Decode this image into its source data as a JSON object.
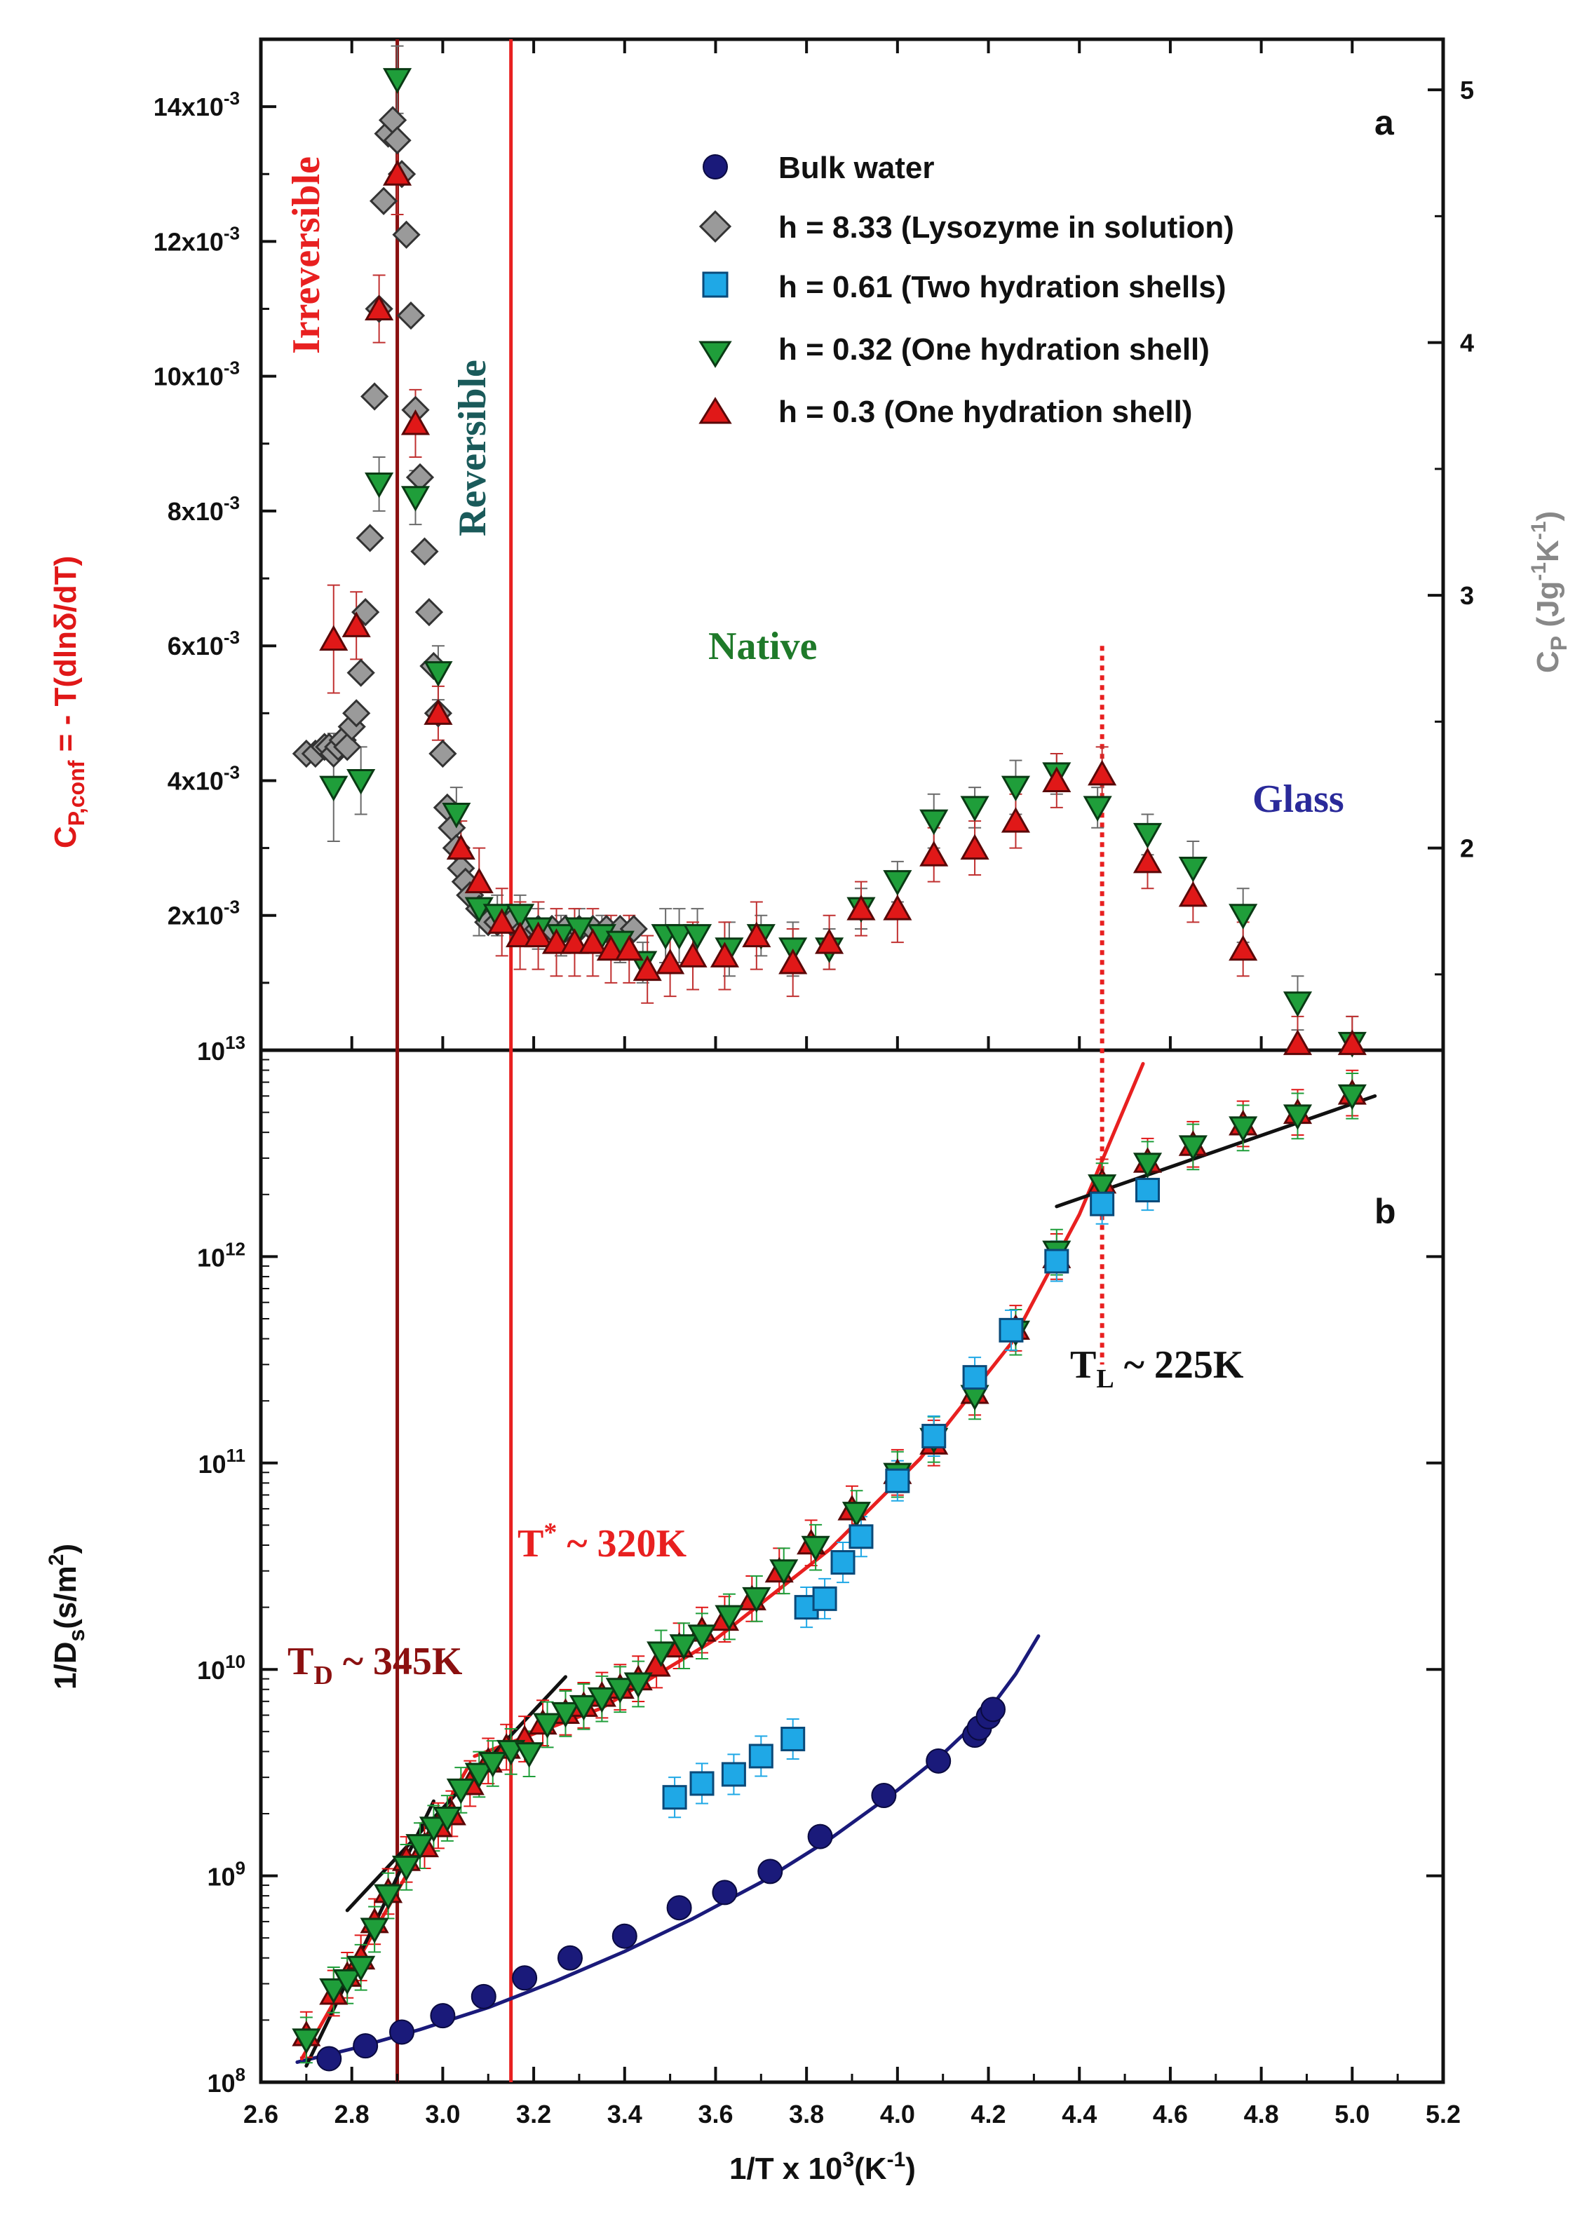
{
  "figure": {
    "x_axis_label": "1/T x 10",
    "x_axis_label_sup": "3",
    "x_axis_label_tail": "(K",
    "x_axis_label_sup2": "-1",
    "x_axis_label_end": ")"
  },
  "colors": {
    "bulk": "#1a1a7a",
    "lysozyme": "#9a9a9a",
    "twoshell": "#1fa8e6",
    "oneshell_032": "#1f9e3a",
    "oneshell_03": "#e01818",
    "dark_red": "#8b1010",
    "red_line": "#e82020",
    "black": "#111111"
  },
  "chart_data": [
    {
      "panel": "a",
      "type": "scatter",
      "panel_label": "a",
      "ylabel_left": {
        "main": "C",
        "sub": "P,conf",
        "rest": " = - T(dlnδ/dT)"
      },
      "ylabel_right": {
        "main": "C",
        "sub": "P",
        "rest": " (Jg",
        "sup1": "-1",
        "mid": "K",
        "sup2": "-1",
        "end": ")"
      },
      "xlim": [
        2.6,
        5.2
      ],
      "ylim_left": [
        0.0,
        0.015
      ],
      "ylim_right": [
        1.2,
        5.2
      ],
      "left_ticks": [
        {
          "value": 0.002,
          "base": "2x10",
          "exp": "-3"
        },
        {
          "value": 0.004,
          "base": "4x10",
          "exp": "-3"
        },
        {
          "value": 0.006,
          "base": "6x10",
          "exp": "-3"
        },
        {
          "value": 0.008,
          "base": "8x10",
          "exp": "-3"
        },
        {
          "value": 0.01,
          "base": "10x10",
          "exp": "-3"
        },
        {
          "value": 0.012,
          "base": "12x10",
          "exp": "-3"
        },
        {
          "value": 0.014,
          "base": "14x10",
          "exp": "-3"
        }
      ],
      "right_ticks": [
        2,
        3,
        4,
        5
      ],
      "legend": [
        {
          "key": "bulk",
          "label": "Bulk water"
        },
        {
          "key": "lysozyme",
          "label": "h = 8.33 (Lysozyme in solution)"
        },
        {
          "key": "twoshell",
          "label": "h = 0.61 (Two hydration shells)"
        },
        {
          "key": "oneshell_032",
          "label": "h = 0.32 (One hydration shell)"
        },
        {
          "key": "oneshell_03",
          "label": "h = 0.3 (One hydration shell)"
        }
      ],
      "annotations": {
        "irreversible": "Irreversible",
        "reversible": "Reversible",
        "native": "Native",
        "glass": "Glass"
      },
      "series": [
        {
          "name": "h = 8.33 (Lysozyme in solution)",
          "key": "lysozyme",
          "x": [
            2.7,
            2.72,
            2.74,
            2.75,
            2.76,
            2.77,
            2.78,
            2.79,
            2.8,
            2.81,
            2.82,
            2.83,
            2.84,
            2.85,
            2.86,
            2.87,
            2.88,
            2.89,
            2.9,
            2.91,
            2.92,
            2.93,
            2.94,
            2.95,
            2.96,
            2.97,
            2.98,
            2.99,
            3.0,
            3.01,
            3.02,
            3.03,
            3.04,
            3.05,
            3.06,
            3.08,
            3.1,
            3.12,
            3.15,
            3.18,
            3.21,
            3.24,
            3.27,
            3.3,
            3.33,
            3.36,
            3.39,
            3.42
          ],
          "y": [
            0.0044,
            0.0044,
            0.0045,
            0.0045,
            0.0044,
            0.0045,
            0.0046,
            0.0045,
            0.0048,
            0.005,
            0.0056,
            0.0065,
            0.0076,
            0.0097,
            0.011,
            0.0126,
            0.0136,
            0.0138,
            0.0135,
            0.013,
            0.0121,
            0.0109,
            0.0095,
            0.0085,
            0.0074,
            0.0065,
            0.0057,
            0.005,
            0.0044,
            0.0036,
            0.0033,
            0.003,
            0.0027,
            0.0025,
            0.0023,
            0.0021,
            0.0019,
            0.0019,
            0.0019,
            0.0018,
            0.0018,
            0.0018,
            0.0018,
            0.0018,
            0.0018,
            0.0018,
            0.0018,
            0.0018
          ]
        },
        {
          "name": "h = 0.32 (One hydration shell)",
          "key": "oneshell_032",
          "x": [
            2.76,
            2.82,
            2.86,
            2.9,
            2.94,
            2.99,
            3.03,
            3.08,
            3.12,
            3.17,
            3.21,
            3.26,
            3.3,
            3.35,
            3.39,
            3.44,
            3.49,
            3.52,
            3.56,
            3.63,
            3.7,
            3.77,
            3.85,
            3.92,
            4.0,
            4.08,
            4.17,
            4.26,
            4.35,
            4.44,
            4.55,
            4.65,
            4.76,
            4.88,
            5.0
          ],
          "y": [
            0.0039,
            0.004,
            0.0084,
            0.0144,
            0.0082,
            0.0056,
            0.0035,
            0.0021,
            0.002,
            0.002,
            0.0018,
            0.0017,
            0.0018,
            0.0017,
            0.0016,
            0.0013,
            0.0017,
            0.0017,
            0.0017,
            0.0015,
            0.0017,
            0.0015,
            0.0015,
            0.0021,
            0.0025,
            0.0034,
            0.0036,
            0.0039,
            0.0041,
            0.0036,
            0.0032,
            0.0027,
            0.002,
            0.0007,
            0.0001
          ],
          "err": [
            0.0008,
            0.0005,
            0.0004,
            0.0005,
            0.0004,
            0.0004,
            0.0004,
            0.0004,
            0.0003,
            0.0003,
            0.0003,
            0.0003,
            0.0003,
            0.0003,
            0.0003,
            0.0003,
            0.0004,
            0.0004,
            0.0004,
            0.0004,
            0.0003,
            0.0004,
            0.0003,
            0.0003,
            0.0003,
            0.0004,
            0.0003,
            0.0004,
            0.0003,
            0.0003,
            0.0003,
            0.0004,
            0.0004,
            0.0004,
            0.0004
          ]
        },
        {
          "name": "h = 0.3 (One hydration shell)",
          "key": "oneshell_03",
          "x": [
            2.76,
            2.81,
            2.86,
            2.9,
            2.94,
            2.99,
            3.04,
            3.08,
            3.13,
            3.17,
            3.21,
            3.25,
            3.29,
            3.33,
            3.37,
            3.41,
            3.45,
            3.5,
            3.55,
            3.62,
            3.69,
            3.77,
            3.85,
            3.92,
            4.0,
            4.08,
            4.17,
            4.26,
            4.35,
            4.45,
            4.55,
            4.65,
            4.76,
            4.88,
            5.0
          ],
          "y": [
            0.0061,
            0.0063,
            0.011,
            0.013,
            0.0093,
            0.005,
            0.003,
            0.0025,
            0.0019,
            0.0017,
            0.0017,
            0.0016,
            0.0016,
            0.0016,
            0.0015,
            0.0015,
            0.0012,
            0.0013,
            0.0014,
            0.0014,
            0.0017,
            0.0013,
            0.0016,
            0.0021,
            0.0021,
            0.0029,
            0.003,
            0.0034,
            0.004,
            0.0041,
            0.0028,
            0.0023,
            0.0015,
            0.0001,
            0.0001
          ],
          "err": [
            0.0008,
            0.0005,
            0.0005,
            0.0006,
            0.0005,
            0.0004,
            0.0004,
            0.0005,
            0.0005,
            0.0005,
            0.0005,
            0.0005,
            0.0005,
            0.0005,
            0.0005,
            0.0005,
            0.0005,
            0.0005,
            0.0005,
            0.0005,
            0.0005,
            0.0005,
            0.0004,
            0.0004,
            0.0005,
            0.0004,
            0.0004,
            0.0004,
            0.0004,
            0.0004,
            0.0004,
            0.0004,
            0.0004,
            0.0004,
            0.0004
          ]
        }
      ]
    },
    {
      "panel": "b",
      "type": "scatter",
      "panel_label": "b",
      "yscale": "log",
      "xlim": [
        2.6,
        5.2
      ],
      "ylim": [
        100000000.0,
        10000000000000.0
      ],
      "ylabel": {
        "main": "1/D",
        "sub": "s",
        "rest": "(s/m",
        "sup": "2",
        "end": ")"
      },
      "x_ticks": [
        "2.6",
        "2.8",
        "3.0",
        "3.2",
        "3.4",
        "3.6",
        "3.8",
        "4.0",
        "4.2",
        "4.4",
        "4.6",
        "4.8",
        "5.0",
        "5.2"
      ],
      "y_ticks": [
        {
          "exp_value": 8,
          "base": "10",
          "exp": "8"
        },
        {
          "exp_value": 9,
          "base": "10",
          "exp": "9"
        },
        {
          "exp_value": 10,
          "base": "10",
          "exp": "10"
        },
        {
          "exp_value": 11,
          "base": "10",
          "exp": "11"
        },
        {
          "exp_value": 12,
          "base": "10",
          "exp": "12"
        },
        {
          "exp_value": 13,
          "base": "10",
          "exp": "13"
        }
      ],
      "annotations": {
        "td": {
          "main": "T",
          "sub": "D",
          "rest": " ~ 345K"
        },
        "tstar": {
          "main": "T",
          "sup": "*",
          "rest": " ~ 320K"
        },
        "tl": {
          "main": "T",
          "sub": "L",
          "rest": " ~ 225K"
        }
      },
      "vertical_lines": [
        {
          "x": 2.9,
          "style": "dark-red"
        },
        {
          "x": 3.15,
          "style": "red"
        },
        {
          "x": 4.45,
          "style": "dotted-red"
        }
      ],
      "series": [
        {
          "name": "Bulk water",
          "key": "bulk",
          "x": [
            2.75,
            2.83,
            2.91,
            3.0,
            3.09,
            3.18,
            3.28,
            3.4,
            3.52,
            3.62,
            3.72,
            3.83,
            3.97,
            4.09,
            4.17,
            4.18,
            4.2,
            4.21
          ],
          "y": [
            130000000.0,
            150000000.0,
            175000000.0,
            210000000.0,
            260000000.0,
            320000000.0,
            400000000.0,
            510000000.0,
            700000000.0,
            830000000.0,
            1050000000.0,
            1550000000.0,
            2450000000.0,
            3600000000.0,
            4800000000.0,
            5200000000.0,
            5900000000.0,
            6400000000.0
          ]
        },
        {
          "name": "h = 0.61 (Two hydration shells)",
          "key": "twoshell",
          "x": [
            3.51,
            3.57,
            3.64,
            3.7,
            3.77,
            3.8,
            3.84,
            3.88,
            3.92,
            4.0,
            4.08,
            4.17,
            4.25,
            4.35,
            4.45,
            4.55
          ],
          "y": [
            2400000000.0,
            2800000000.0,
            3100000000.0,
            3800000000.0,
            4600000000.0,
            20000000000.0,
            22000000000.0,
            33000000000.0,
            44000000000.0,
            82000000000.0,
            135000000000.0,
            260000000000.0,
            440000000000.0,
            950000000000.0,
            1800000000000.0,
            2100000000000.0
          ]
        },
        {
          "name": "h = 0.32 (One hydration shell)",
          "key": "oneshell_032",
          "x": [
            2.7,
            2.76,
            2.79,
            2.82,
            2.85,
            2.88,
            2.92,
            2.95,
            2.98,
            3.01,
            3.04,
            3.08,
            3.11,
            3.15,
            3.19,
            3.23,
            3.27,
            3.31,
            3.35,
            3.39,
            3.43,
            3.48,
            3.53,
            3.57,
            3.63,
            3.69,
            3.75,
            3.82,
            3.91,
            4.0,
            4.08,
            4.17,
            4.26,
            4.35,
            4.45,
            4.55,
            4.65,
            4.76,
            4.88,
            5.0
          ],
          "y": [
            160000000.0,
            280000000.0,
            310000000.0,
            360000000.0,
            550000000.0,
            800000000.0,
            1100000000.0,
            1400000000.0,
            1700000000.0,
            1900000000.0,
            2600000000.0,
            3100000000.0,
            3500000000.0,
            4000000000.0,
            3900000000.0,
            5400000000.0,
            6100000000.0,
            6600000000.0,
            7200000000.0,
            8000000000.0,
            8500000000.0,
            12000000000.0,
            13000000000.0,
            14500000000.0,
            18000000000.0,
            22000000000.0,
            30000000000.0,
            39000000000.0,
            57000000000.0,
            88000000000.0,
            130000000000.0,
            210000000000.0,
            430000000000.0,
            1050000000000.0,
            2200000000000.0,
            2800000000000.0,
            3400000000000.0,
            4200000000000.0,
            4800000000000.0,
            6000000000000.0
          ],
          "err_frac": 0.18
        },
        {
          "name": "h = 0.3 (One hydration shell)",
          "key": "oneshell_03",
          "x": [
            2.7,
            2.76,
            2.79,
            2.82,
            2.85,
            2.88,
            2.92,
            2.96,
            2.99,
            3.02,
            3.06,
            3.1,
            3.14,
            3.18,
            3.22,
            3.27,
            3.31,
            3.35,
            3.39,
            3.43,
            3.47,
            3.52,
            3.57,
            3.62,
            3.68,
            3.74,
            3.81,
            3.9,
            4.0,
            4.08,
            4.17,
            4.26,
            4.35,
            4.45,
            4.55,
            4.65,
            4.76,
            4.88,
            5.0
          ],
          "y": [
            170000000.0,
            270000000.0,
            330000000.0,
            400000000.0,
            600000000.0,
            840000000.0,
            1200000000.0,
            1400000000.0,
            1750000000.0,
            2000000000.0,
            2800000000.0,
            3600000000.0,
            4200000000.0,
            4600000000.0,
            5500000000.0,
            6200000000.0,
            6700000000.0,
            7500000000.0,
            8200000000.0,
            9000000000.0,
            10500000000.0,
            13000000000.0,
            15500000000.0,
            17500000000.0,
            22000000000.0,
            30000000000.0,
            41000000000.0,
            60000000000.0,
            90000000000.0,
            125000000000.0,
            220000000000.0,
            450000000000.0,
            1000000000000.0,
            2300000000000.0,
            2900000000000.0,
            3500000000000.0,
            4400000000000.0,
            5000000000000.0,
            6200000000000.0
          ],
          "err_frac": 0.18
        }
      ],
      "fit_lines": [
        {
          "key": "bulk",
          "desc": "Bulk water fit",
          "x": [
            2.68,
            2.8,
            2.95,
            3.1,
            3.25,
            3.4,
            3.55,
            3.7,
            3.85,
            4.0,
            4.1,
            4.2,
            4.26,
            4.31
          ],
          "y": [
            125000000.0,
            145000000.0,
            180000000.0,
            230000000.0,
            310000000.0,
            430000000.0,
            620000000.0,
            930000000.0,
            1500000000.0,
            2600000000.0,
            3900000000.0,
            6300000000.0,
            9500000000.0,
            14500000000.0
          ]
        },
        {
          "key": "red",
          "desc": "Red fit below T*",
          "x": [
            2.69,
            3.06
          ],
          "y": [
            130000000.0,
            3500000000.0
          ]
        },
        {
          "key": "red",
          "desc": "Red fit T* to TL",
          "x": [
            3.07,
            3.35,
            3.6,
            3.85,
            4.05,
            4.25,
            4.4,
            4.54
          ],
          "y": [
            3800000000.0,
            6500000000.0,
            14000000000.0,
            38000000000.0,
            105000000000.0,
            380000000000.0,
            1600000000000.0,
            8600000000000.0
          ]
        },
        {
          "key": "black",
          "desc": "Black fit high T",
          "x": [
            2.7,
            2.98
          ],
          "y": [
            120000000.0,
            2300000000.0
          ]
        },
        {
          "key": "black",
          "desc": "Black fit near TD",
          "x": [
            2.79,
            3.27
          ],
          "y": [
            680000000.0,
            9200000000.0
          ]
        },
        {
          "key": "black",
          "desc": "Black fit below TL",
          "x": [
            4.35,
            5.05
          ],
          "y": [
            1750000000000.0,
            6000000000000.0
          ]
        }
      ]
    }
  ]
}
